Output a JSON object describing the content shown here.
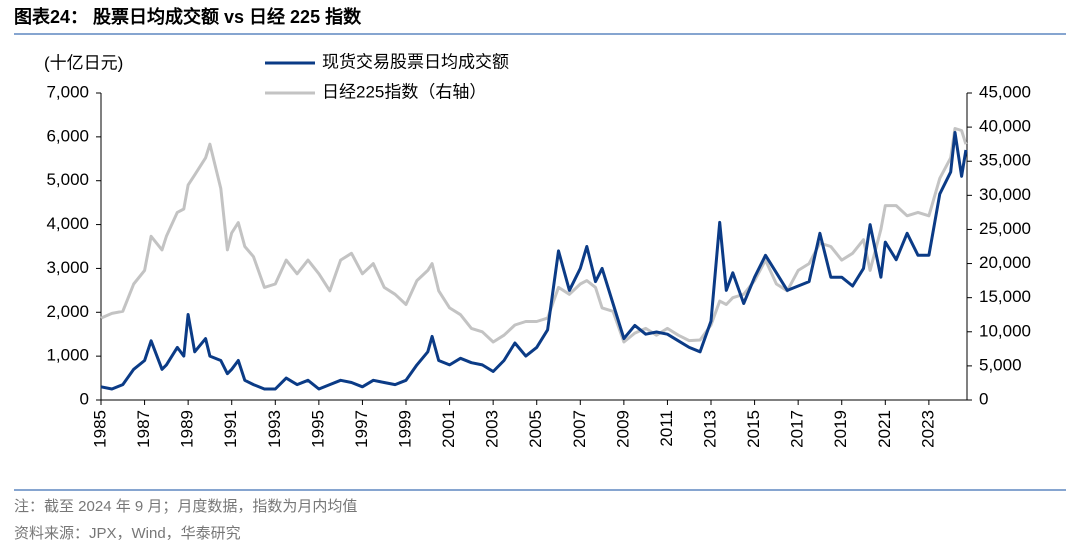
{
  "chart_data": {
    "type": "line",
    "title": "图表24：  股票日均成交额 vs 日经 225 指数",
    "y_label": "(十亿日元)",
    "note": "注：截至 2024 年 9 月；月度数据，指数为月内均值",
    "source": "资料来源：JPX，Wind，华泰研究",
    "x": [
      1985,
      1985.5,
      1986,
      1986.5,
      1987,
      1987.3,
      1987.8,
      1988,
      1988.5,
      1988.8,
      1989,
      1989.3,
      1989.8,
      1990,
      1990.5,
      1990.8,
      1991,
      1991.3,
      1991.6,
      1992,
      1992.5,
      1993,
      1993.5,
      1994,
      1994.5,
      1995,
      1995.5,
      1996,
      1996.5,
      1997,
      1997.5,
      1998,
      1998.5,
      1999,
      1999.5,
      2000,
      2000.2,
      2000.5,
      2001,
      2001.5,
      2002,
      2002.5,
      2003,
      2003.5,
      2004,
      2004.5,
      2005,
      2005.5,
      2006,
      2006.5,
      2007,
      2007.3,
      2007.7,
      2008,
      2008.5,
      2009,
      2009.5,
      2010,
      2010.5,
      2011,
      2011.5,
      2012,
      2012.5,
      2013,
      2013.4,
      2013.7,
      2014,
      2014.5,
      2015,
      2015.5,
      2016,
      2016.5,
      2017,
      2017.5,
      2018,
      2018.5,
      2019,
      2019.5,
      2020,
      2020.3,
      2020.8,
      2021,
      2021.5,
      2022,
      2022.5,
      2023,
      2023.5,
      2024,
      2024.2,
      2024.5,
      2024.7
    ],
    "series": [
      {
        "name": "现货交易股票日均成交额",
        "color": "#0b3b86",
        "axis": "y",
        "values": [
          300,
          250,
          350,
          700,
          900,
          1350,
          700,
          800,
          1200,
          1000,
          1950,
          1100,
          1400,
          1000,
          900,
          600,
          700,
          900,
          450,
          350,
          250,
          250,
          500,
          350,
          450,
          250,
          350,
          450,
          400,
          300,
          450,
          400,
          350,
          450,
          800,
          1100,
          1450,
          900,
          800,
          950,
          850,
          800,
          650,
          900,
          1300,
          1000,
          1200,
          1600,
          3400,
          2500,
          3000,
          3500,
          2700,
          3000,
          2200,
          1400,
          1700,
          1500,
          1550,
          1500,
          1350,
          1200,
          1100,
          1800,
          4050,
          2500,
          2900,
          2200,
          2800,
          3300,
          2900,
          2500,
          2600,
          2700,
          3800,
          2800,
          2800,
          2600,
          3000,
          4000,
          2800,
          3600,
          3200,
          3800,
          3300,
          3300,
          4700,
          5200,
          6100,
          5100,
          5700
        ]
      },
      {
        "name": "日经225指数（右轴）",
        "color": "#c3c3c3",
        "axis": "y2",
        "values": [
          12000,
          12700,
          13000,
          17000,
          19000,
          24000,
          22000,
          24000,
          27500,
          28000,
          31500,
          33000,
          35500,
          37500,
          31000,
          22000,
          24500,
          26000,
          22500,
          21000,
          16500,
          17000,
          20500,
          18500,
          20500,
          18500,
          16000,
          20500,
          21500,
          18500,
          20000,
          16500,
          15500,
          14000,
          17500,
          19000,
          20000,
          16000,
          13500,
          12500,
          10500,
          10000,
          8500,
          9500,
          11000,
          11500,
          11500,
          12000,
          16500,
          15500,
          17000,
          17500,
          16500,
          13500,
          13000,
          8500,
          9800,
          10500,
          9500,
          10500,
          9500,
          8700,
          8800,
          11000,
          14500,
          14000,
          15000,
          15500,
          17500,
          20500,
          17000,
          16000,
          19000,
          20000,
          23000,
          22500,
          20500,
          21500,
          23500,
          19000,
          25000,
          28500,
          28500,
          27000,
          27500,
          27000,
          32500,
          35500,
          39800,
          39500,
          37500
        ]
      }
    ],
    "xlim": [
      1985,
      2024.75
    ],
    "xticks": [
      1985,
      1987,
      1989,
      1991,
      1993,
      1995,
      1997,
      1999,
      2001,
      2003,
      2005,
      2007,
      2009,
      2011,
      2013,
      2015,
      2017,
      2019,
      2021,
      2023
    ],
    "ylim": [
      0,
      7000
    ],
    "yticks": [
      0,
      {
        "value": 1000,
        "label": "1,000"
      },
      {
        "value": 2000,
        "label": "2,000"
      },
      {
        "value": 3000,
        "label": "3,000"
      },
      {
        "value": 4000,
        "label": "4,000"
      },
      {
        "value": 5000,
        "label": "5,000"
      },
      {
        "value": 6000,
        "label": "6,000"
      },
      {
        "value": 7000,
        "label": "7,000"
      }
    ],
    "y2lim": [
      0,
      45000
    ],
    "y2ticks": [
      0,
      {
        "value": 5000,
        "label": "5,000"
      },
      {
        "value": 10000,
        "label": "10,000"
      },
      {
        "value": 15000,
        "label": "15,000"
      },
      {
        "value": 20000,
        "label": "20,000"
      },
      {
        "value": 25000,
        "label": "25,000"
      },
      {
        "value": 30000,
        "label": "30,000"
      },
      {
        "value": 35000,
        "label": "35,000"
      },
      {
        "value": 40000,
        "label": "40,000"
      },
      {
        "value": 45000,
        "label": "45,000"
      }
    ],
    "grid": false
  }
}
